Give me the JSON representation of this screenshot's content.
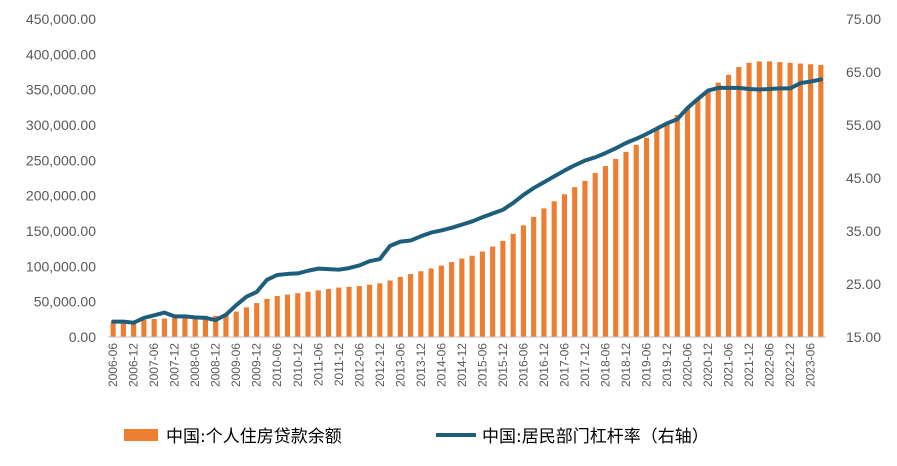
{
  "colors": {
    "bar": "#ED7D31",
    "line": "#1F5E7A",
    "axis_text": "#595959"
  },
  "legend": {
    "bar_label": "中国:个人住房贷款余额",
    "line_label": "中国:居民部门杠杆率（右轴）",
    "placement": "bottom"
  },
  "chart_data": {
    "type": "bar+line",
    "categories": [
      "2006-06",
      "2006-09",
      "2006-12",
      "2007-03",
      "2007-06",
      "2007-09",
      "2007-12",
      "2008-03",
      "2008-06",
      "2008-09",
      "2008-12",
      "2009-03",
      "2009-06",
      "2009-09",
      "2009-12",
      "2010-03",
      "2010-06",
      "2010-09",
      "2010-12",
      "2011-03",
      "2011-06",
      "2011-09",
      "2011-12",
      "2012-03",
      "2012-06",
      "2012-09",
      "2012-12",
      "2013-03",
      "2013-06",
      "2013-09",
      "2013-12",
      "2014-03",
      "2014-06",
      "2014-09",
      "2014-12",
      "2015-03",
      "2015-06",
      "2015-09",
      "2015-12",
      "2016-03",
      "2016-06",
      "2016-09",
      "2016-12",
      "2017-03",
      "2017-06",
      "2017-09",
      "2017-12",
      "2018-03",
      "2018-06",
      "2018-09",
      "2018-12",
      "2019-03",
      "2019-06",
      "2019-09",
      "2019-12",
      "2020-03",
      "2020-06",
      "2020-09",
      "2020-12",
      "2021-03",
      "2021-06",
      "2021-09",
      "2021-12",
      "2022-03",
      "2022-06",
      "2022-09",
      "2022-12",
      "2023-03",
      "2023-06",
      "2023-09"
    ],
    "x_tick_labels": [
      "2006-06",
      "2006-12",
      "2007-06",
      "2007-12",
      "2008-06",
      "2008-12",
      "2009-06",
      "2009-12",
      "2010-06",
      "2010-12",
      "2011-06",
      "2011-12",
      "2012-06",
      "2012-12",
      "2013-06",
      "2013-12",
      "2014-06",
      "2014-12",
      "2015-06",
      "2015-12",
      "2016-06",
      "2016-12",
      "2017-06",
      "2017-12",
      "2018-06",
      "2018-12",
      "2019-06",
      "2019-12",
      "2020-06",
      "2020-12",
      "2021-06",
      "2021-12",
      "2022-06",
      "2022-12",
      "2023-06"
    ],
    "x_tick_labels_note": "",
    "y_left": {
      "min": 0,
      "max": 450000,
      "ticks": [
        "0.00",
        "50,000.00",
        "100,000.00",
        "150,000.00",
        "200,000.00",
        "250,000.00",
        "300,000.00",
        "350,000.00",
        "400,000.00",
        "450,000.00"
      ]
    },
    "y_right": {
      "min": 15,
      "max": 75,
      "ticks": [
        "15.00",
        "25.00",
        "35.00",
        "45.00",
        "55.00",
        "65.00",
        "75.00"
      ]
    },
    "series": [
      {
        "name": "中国:个人住房贷款余额",
        "type": "bar",
        "axis": "left",
        "values": [
          21000,
          21500,
          22000,
          24000,
          25500,
          26000,
          27000,
          28000,
          29000,
          30000,
          30000,
          31000,
          36000,
          42000,
          48000,
          54000,
          58000,
          60000,
          62000,
          64000,
          66000,
          68000,
          70000,
          71000,
          72000,
          74000,
          76000,
          80000,
          85000,
          89000,
          93000,
          97000,
          101000,
          106000,
          111000,
          115000,
          121000,
          128000,
          136000,
          146000,
          158000,
          170000,
          182000,
          192000,
          202000,
          212000,
          221000,
          232000,
          242000,
          252000,
          262000,
          272000,
          282000,
          293000,
          303000,
          314000,
          325000,
          337000,
          349000,
          360000,
          371000,
          382000,
          388000,
          390000,
          390000,
          389000,
          388000,
          387000,
          386000,
          385000
        ]
      },
      {
        "name": "中国:居民部门杠杆率（右轴）",
        "type": "line",
        "axis": "right",
        "values": [
          17.9,
          17.9,
          17.7,
          18.6,
          19.1,
          19.6,
          18.9,
          18.9,
          18.7,
          18.6,
          18.2,
          19.2,
          21.0,
          22.6,
          23.5,
          25.8,
          26.7,
          26.9,
          27.0,
          27.5,
          27.9,
          27.8,
          27.7,
          28.0,
          28.5,
          29.3,
          29.7,
          32.2,
          33.0,
          33.2,
          34.0,
          34.7,
          35.1,
          35.6,
          36.2,
          36.8,
          37.6,
          38.3,
          39.0,
          40.3,
          41.8,
          43.1,
          44.2,
          45.3,
          46.4,
          47.4,
          48.3,
          48.9,
          49.7,
          50.6,
          51.6,
          52.4,
          53.3,
          54.3,
          55.3,
          56.1,
          58.2,
          59.9,
          61.5,
          62.0,
          62.0,
          62.0,
          61.8,
          61.7,
          61.8,
          61.9,
          61.9,
          62.9,
          63.2,
          63.6
        ]
      }
    ]
  }
}
